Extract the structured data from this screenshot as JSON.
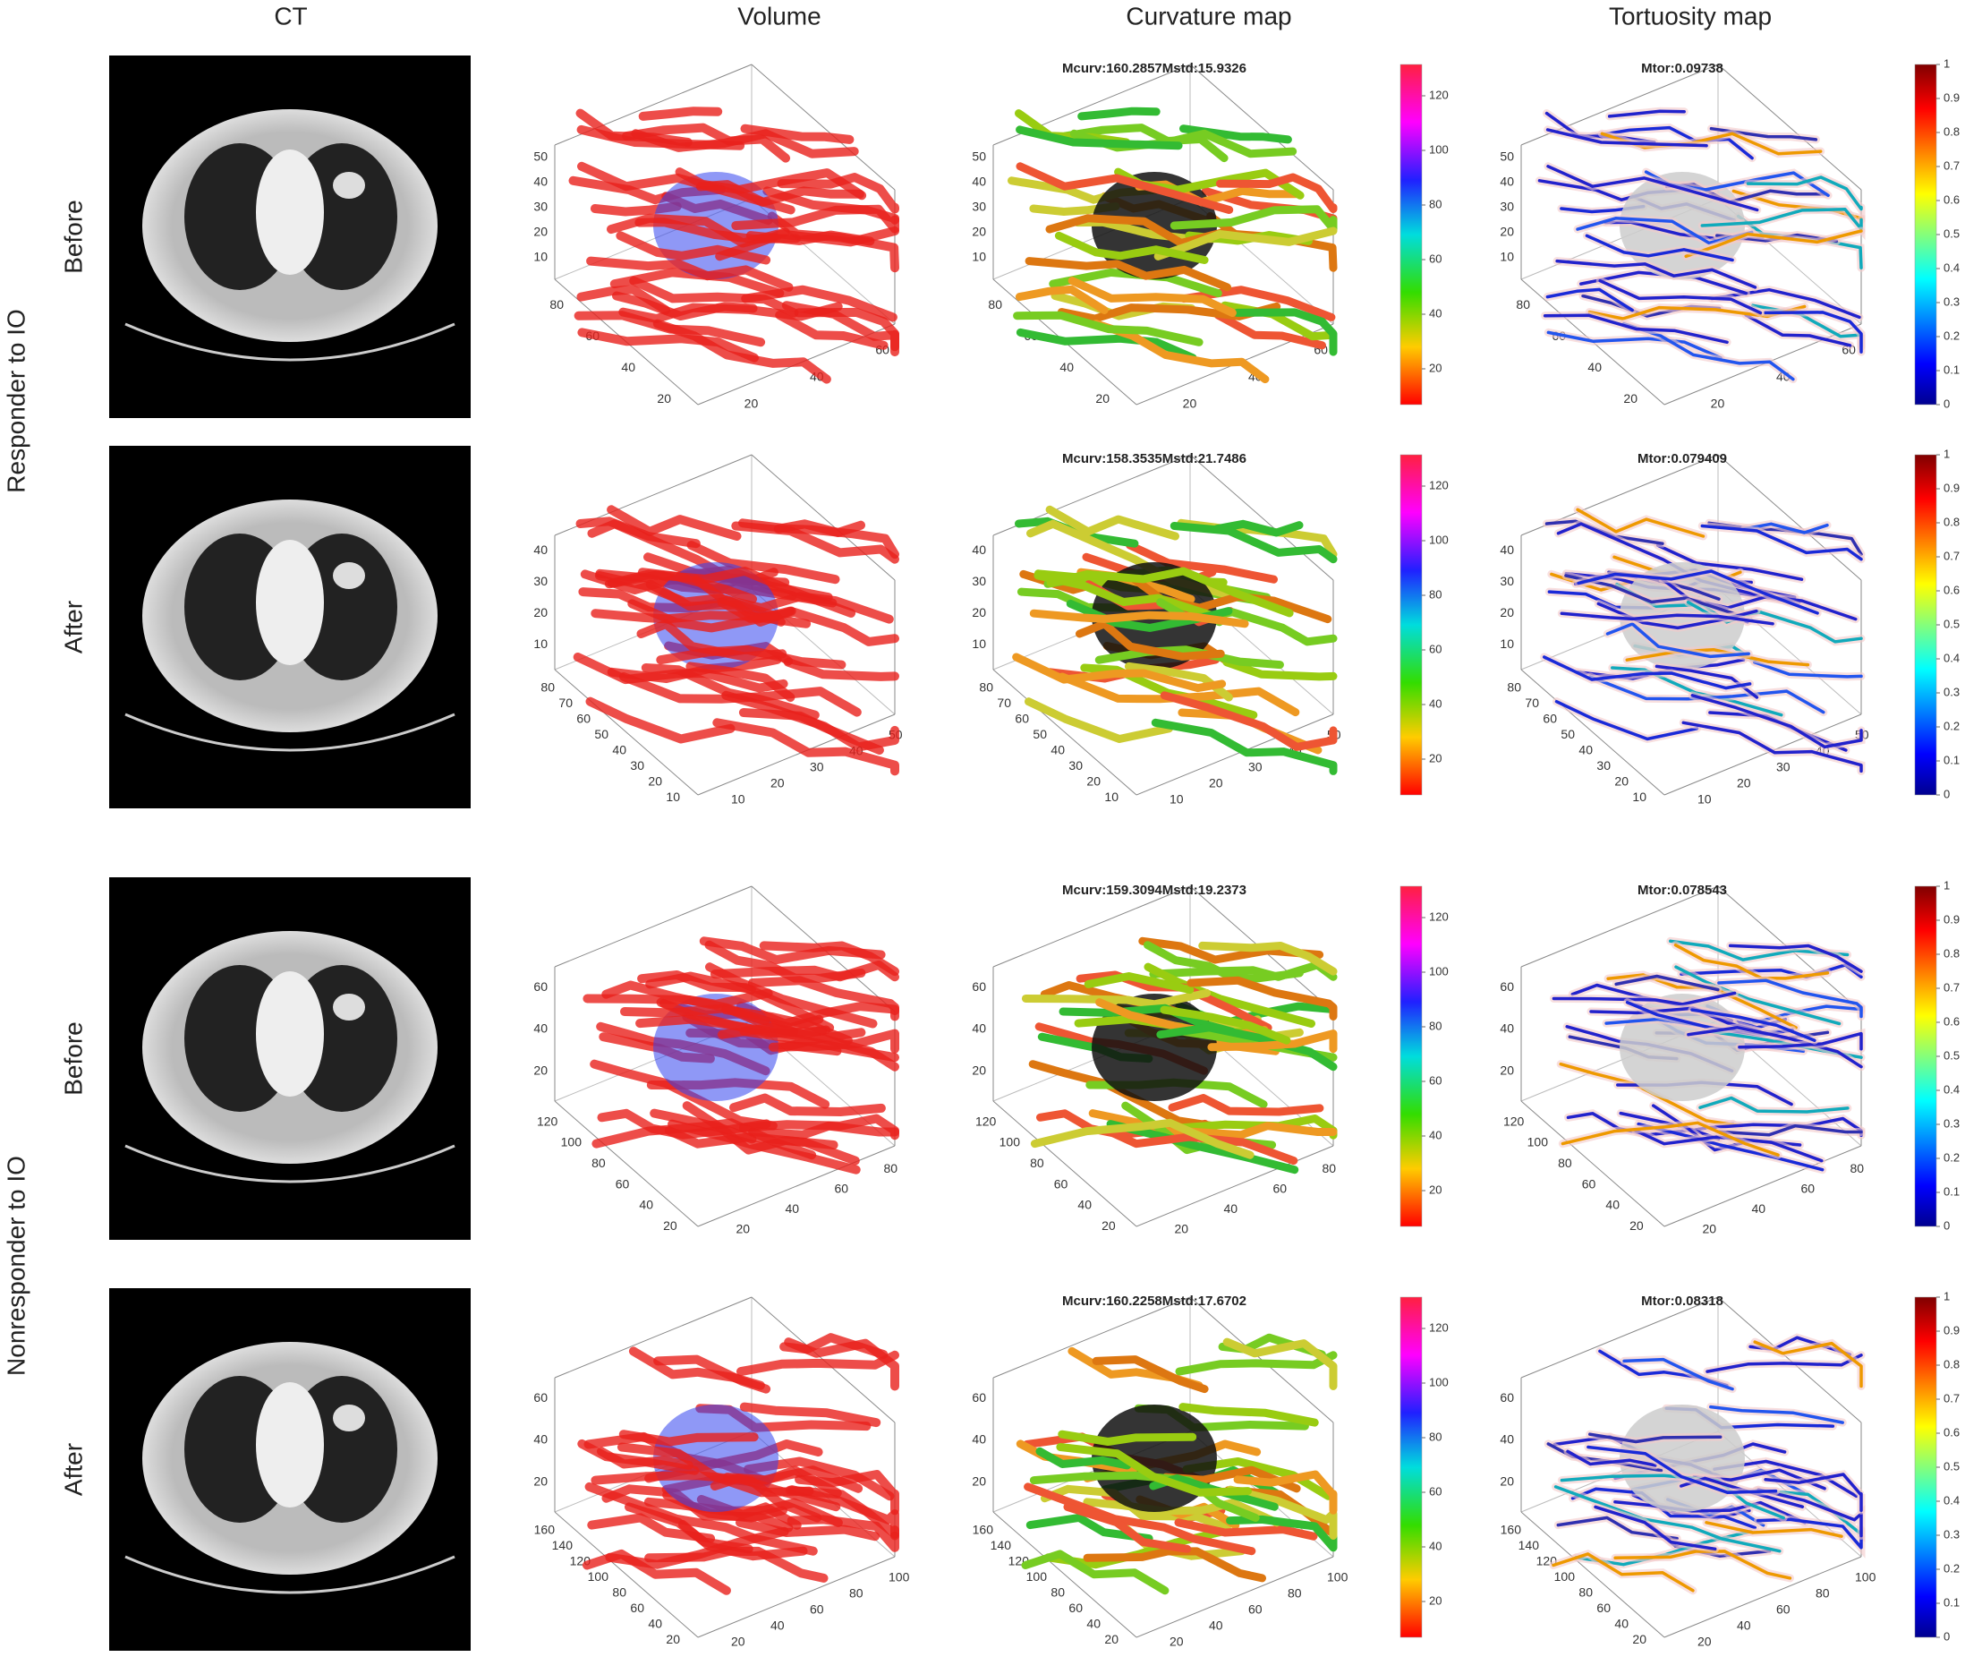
{
  "columns": [
    "CT",
    "Volume",
    "Curvature map",
    "Tortuosity map"
  ],
  "groups": [
    {
      "label": "Responder to IO",
      "rows": [
        {
          "label": "Before",
          "curvature_title": "Mcurv:160.2857Mstd:15.9326",
          "tortuosity_title": "Mtor:0.09738",
          "z_ticks": [
            "10",
            "20",
            "30",
            "40",
            "50"
          ],
          "y_ticks": [
            "80",
            "60",
            "40",
            "20"
          ],
          "x_ticks": [
            "20",
            "40",
            "60"
          ]
        },
        {
          "label": "After",
          "curvature_title": "Mcurv:158.3535Mstd:21.7486",
          "tortuosity_title": "Mtor:0.079409",
          "z_ticks": [
            "10",
            "20",
            "30",
            "40"
          ],
          "y_ticks": [
            "80",
            "70",
            "60",
            "50",
            "40",
            "30",
            "20",
            "10"
          ],
          "x_ticks": [
            "10",
            "20",
            "30",
            "40",
            "50"
          ]
        }
      ]
    },
    {
      "label": "Nonresponder to IO",
      "rows": [
        {
          "label": "Before",
          "curvature_title": "Mcurv:159.3094Mstd:19.2373",
          "tortuosity_title": "Mtor:0.078543",
          "z_ticks": [
            "20",
            "40",
            "60"
          ],
          "y_ticks": [
            "120",
            "100",
            "80",
            "60",
            "40",
            "20"
          ],
          "x_ticks": [
            "20",
            "40",
            "60",
            "80"
          ]
        },
        {
          "label": "After",
          "curvature_title": "Mcurv:160.2258Mstd:17.6702",
          "tortuosity_title": "Mtor:0.08318",
          "z_ticks": [
            "20",
            "40",
            "60"
          ],
          "y_ticks": [
            "160",
            "140",
            "120",
            "100",
            "80",
            "60",
            "40",
            "20"
          ],
          "x_ticks": [
            "20",
            "40",
            "60",
            "80",
            "100"
          ]
        }
      ]
    }
  ],
  "curvature_colorbar": [
    "20",
    "40",
    "60",
    "80",
    "100",
    "120"
  ],
  "tortuosity_colorbar": [
    "0",
    "0.1",
    "0.2",
    "0.3",
    "0.4",
    "0.5",
    "0.6",
    "0.7",
    "0.8",
    "0.9",
    "1"
  ]
}
